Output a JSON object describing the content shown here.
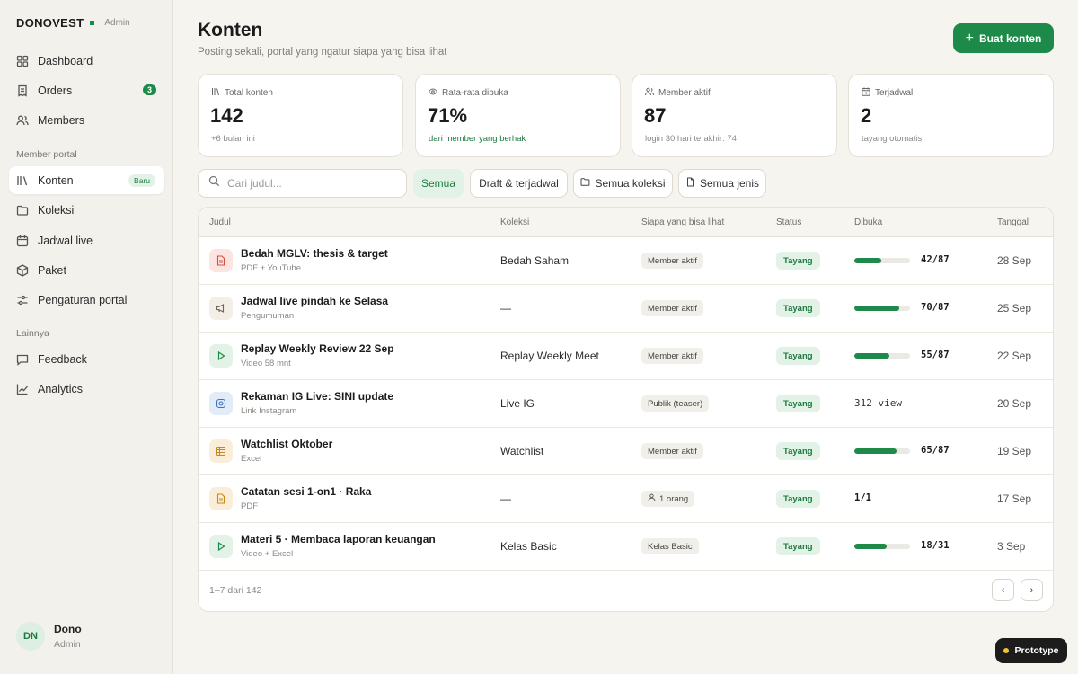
{
  "brand": {
    "name": "DONOVEST",
    "role": "Admin"
  },
  "nav": {
    "dashboard": "Dashboard",
    "orders": "Orders",
    "orders_badge": "3",
    "members": "Members",
    "section_member_portal": "Member portal",
    "konten": "Konten",
    "konten_badge": "Baru",
    "koleksi": "Koleksi",
    "jadwal_live": "Jadwal live",
    "paket": "Paket",
    "pengaturan_portal": "Pengaturan portal",
    "section_lainnya": "Lainnya",
    "feedback": "Feedback",
    "analytics": "Analytics"
  },
  "user": {
    "initials": "DN",
    "name": "Dono",
    "role": "Admin"
  },
  "header": {
    "title": "Konten",
    "subtitle": "Posting sekali, portal yang ngatur siapa yang bisa lihat",
    "create_button": "Buat konten"
  },
  "stats": [
    {
      "label": "Total konten",
      "value": "142",
      "note": "+6 bulan ini",
      "icon": "library-icon"
    },
    {
      "label": "Rata-rata dibuka",
      "value": "71%",
      "note": "dari member yang berhak",
      "icon": "eye-icon"
    },
    {
      "label": "Member aktif",
      "value": "87",
      "note": "login 30 hari terakhir: 74",
      "icon": "users-icon"
    },
    {
      "label": "Terjadwal",
      "value": "2",
      "note": "tayang otomatis",
      "icon": "calendar-icon"
    }
  ],
  "filters": {
    "search_placeholder": "Cari judul...",
    "all": "Semua",
    "draft": "Draft & terjadwal",
    "collections": "Semua koleksi",
    "types": "Semua jenis"
  },
  "table": {
    "columns": [
      "Judul",
      "Koleksi",
      "Siapa yang bisa lihat",
      "Status",
      "Dibuka",
      "Tanggal"
    ],
    "rows": [
      {
        "title": "Bedah MGLV: thesis & target",
        "type": "PDF + YouTube",
        "icon": "document-icon",
        "collection": "Bedah Saham",
        "access": "Member aktif",
        "status": "Tayang",
        "opened": "42/87",
        "opened_ratio": 0.48,
        "date": "28 Sep"
      },
      {
        "title": "Jadwal live pindah ke Selasa",
        "type": "Pengumuman",
        "icon": "megaphone-icon",
        "collection": "—",
        "access": "Member aktif",
        "status": "Tayang",
        "opened": "70/87",
        "opened_ratio": 0.8,
        "date": "25 Sep"
      },
      {
        "title": "Replay Weekly Review 22 Sep",
        "type": "Video 58 mnt",
        "icon": "play-icon",
        "collection": "Replay Weekly Meet",
        "access": "Member aktif",
        "status": "Tayang",
        "opened": "55/87",
        "opened_ratio": 0.63,
        "date": "22 Sep"
      },
      {
        "title": "Rekaman IG Live: SINI update",
        "type": "Link Instagram",
        "icon": "instagram-icon",
        "collection": "Live IG",
        "access": "Publik (teaser)",
        "status": "Tayang",
        "opened": "312 view",
        "date": "20 Sep"
      },
      {
        "title": "Watchlist Oktober",
        "type": "Excel",
        "icon": "spreadsheet-icon",
        "collection": "Watchlist",
        "access": "Member aktif",
        "status": "Tayang",
        "opened": "65/87",
        "opened_ratio": 0.75,
        "date": "19 Sep"
      },
      {
        "title": "Catatan sesi 1-on1 · Raka",
        "type": "PDF",
        "icon": "document-icon",
        "collection": "—",
        "access": "1 orang",
        "access_icon": "person-icon",
        "status": "Tayang",
        "opened": "1/1",
        "date": "17 Sep"
      },
      {
        "title": "Materi 5 · Membaca laporan keuangan",
        "type": "Video + Excel",
        "icon": "play-icon",
        "collection": "Kelas Basic",
        "access": "Kelas Basic",
        "status": "Tayang",
        "opened": "18/31",
        "opened_ratio": 0.58,
        "date": "3 Sep"
      }
    ],
    "pagination_text": "1–7 dari 142",
    "prev": "‹",
    "next": "›"
  },
  "prototype_label": "Prototype",
  "colors": {
    "accent": "#1e8a4a",
    "accent_soft": "#e3f2e7",
    "background": "#f6f4ef"
  }
}
